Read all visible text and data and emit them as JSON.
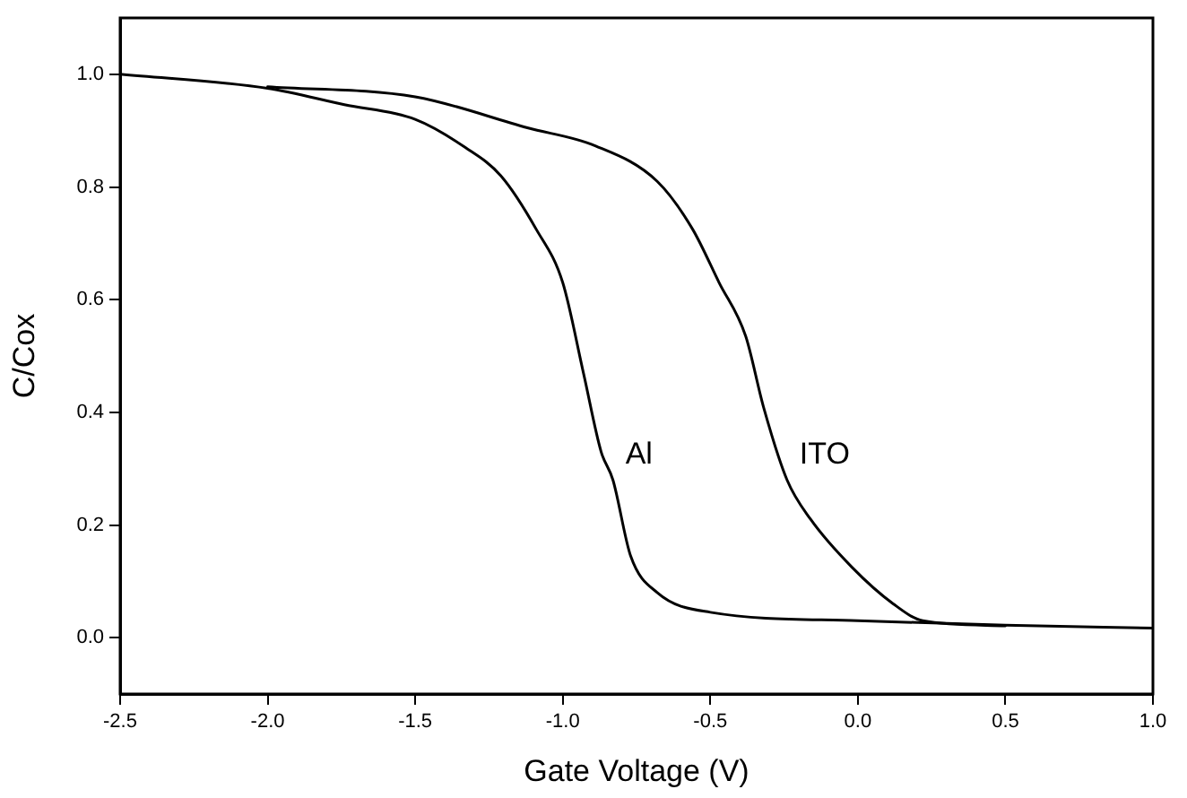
{
  "chart_data": {
    "type": "line",
    "xlabel": "Gate Voltage (V)",
    "ylabel": "C/Cox",
    "xlim": [
      -2.5,
      1.0
    ],
    "xticks": [
      {
        "value": -2.5,
        "label": "-2.5"
      },
      {
        "value": -2.0,
        "label": "-2.0"
      },
      {
        "value": -1.5,
        "label": "-1.5"
      },
      {
        "value": -1.0,
        "label": "-1.0"
      },
      {
        "value": -0.5,
        "label": "-0.5"
      },
      {
        "value": 0.0,
        "label": "0.0"
      },
      {
        "value": 0.5,
        "label": "0.5"
      },
      {
        "value": 1.0,
        "label": "1.0"
      }
    ],
    "ylim": [
      -0.1,
      1.1
    ],
    "yticks": [
      {
        "value": 0.0,
        "label": "0.0"
      },
      {
        "value": 0.2,
        "label": "0.2"
      },
      {
        "value": 0.4,
        "label": "0.4"
      },
      {
        "value": 0.6,
        "label": "0.6"
      },
      {
        "value": 0.8,
        "label": "0.8"
      },
      {
        "value": 1.0,
        "label": "1.0"
      }
    ],
    "grid": false,
    "legend": false,
    "marker": "none",
    "line_style": "solid",
    "series": [
      {
        "name": "ITO",
        "color": "#000000",
        "x": [
          -2.0,
          -1.5,
          -1.12,
          -0.89,
          -0.68,
          -0.56,
          -0.47,
          -0.38,
          -0.32,
          -0.24,
          -0.16,
          -0.02,
          0.12,
          0.22,
          0.5
        ],
        "values": [
          0.978,
          0.96,
          0.905,
          0.873,
          0.81,
          0.725,
          0.63,
          0.535,
          0.41,
          0.28,
          0.21,
          0.125,
          0.06,
          0.03,
          0.021
        ]
      },
      {
        "name": "Al",
        "color": "#000000",
        "x": [
          -2.5,
          -2.0,
          -1.74,
          -1.5,
          -1.33,
          -1.21,
          -1.09,
          -1.0,
          -0.93,
          -0.87,
          -0.83,
          -0.77,
          -0.68,
          -0.5,
          0.0,
          0.5,
          1.0
        ],
        "values": [
          1.0,
          0.975,
          0.946,
          0.92,
          0.87,
          0.82,
          0.725,
          0.63,
          0.47,
          0.33,
          0.28,
          0.145,
          0.08,
          0.045,
          0.03,
          0.022,
          0.017
        ]
      }
    ]
  }
}
